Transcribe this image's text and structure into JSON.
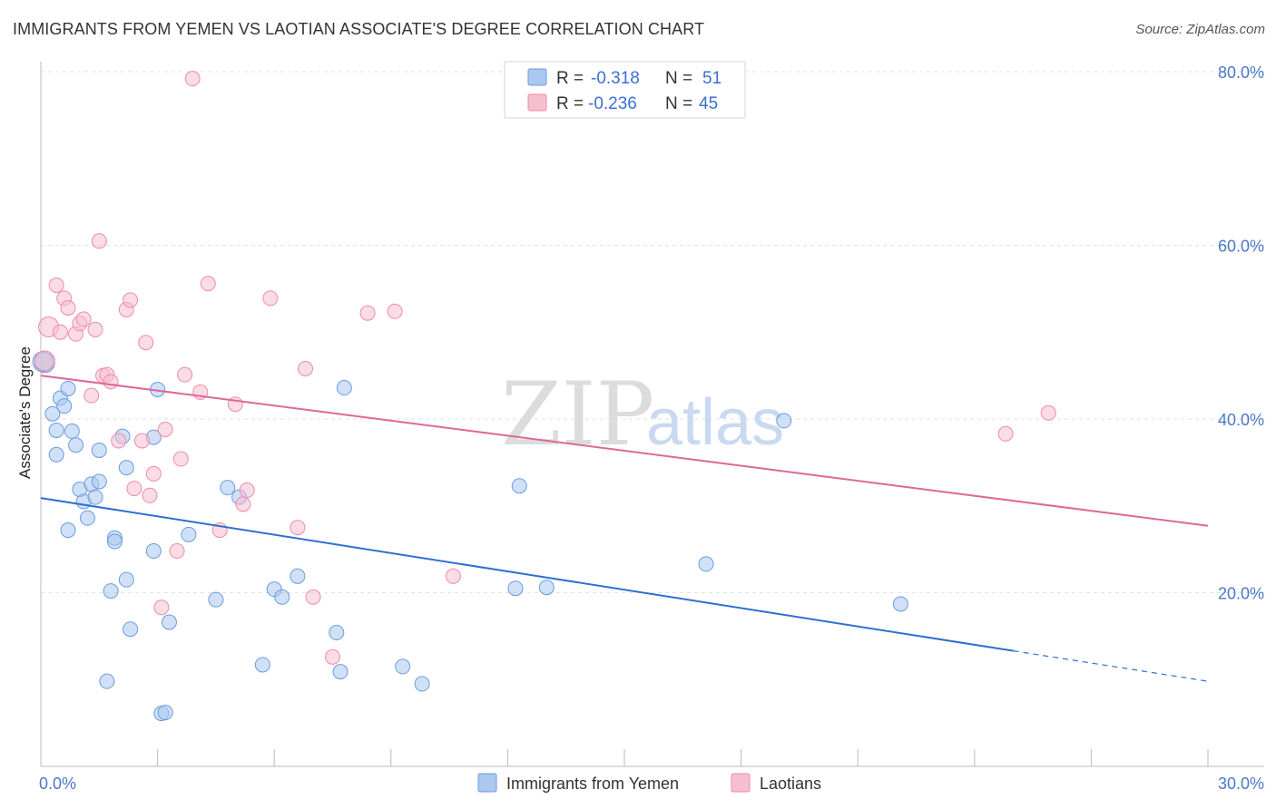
{
  "header": {
    "title": "IMMIGRANTS FROM YEMEN VS LAOTIAN ASSOCIATE'S DEGREE CORRELATION CHART",
    "source": "Source: ZipAtlas.com"
  },
  "watermark": {
    "zip": "ZIP",
    "atlas": "atlas"
  },
  "legend": {
    "rows": [
      {
        "r_label": "R =",
        "r_value": "-0.318",
        "n_label": "N =",
        "n_value": "51",
        "color": "#aac8f0"
      },
      {
        "r_label": "R =",
        "r_value": "-0.236",
        "n_label": "N =",
        "n_value": "45",
        "color": "#f6bfd0"
      }
    ]
  },
  "bottom_legend": {
    "items": [
      {
        "label": "Immigrants from Yemen",
        "color": "#aac8f0"
      },
      {
        "label": "Laotians",
        "color": "#f6bfd0"
      }
    ]
  },
  "chart_data": {
    "type": "scatter",
    "title": "IMMIGRANTS FROM YEMEN VS LAOTIAN ASSOCIATE'S DEGREE CORRELATION CHART",
    "xlabel": "",
    "ylabel": "Associate's Degree",
    "xlim": [
      0,
      30
    ],
    "ylim": [
      0,
      80
    ],
    "x_tick_labels": [
      "0.0%",
      "30.0%"
    ],
    "y_tick_labels": [
      "20.0%",
      "40.0%",
      "60.0%",
      "80.0%"
    ],
    "y_ticks": [
      20,
      40,
      60,
      80
    ],
    "grid": true,
    "legend_position": "top-center",
    "series": [
      {
        "name": "Immigrants from Yemen",
        "color": "#6b9be0",
        "fill": "#aac8f0",
        "trend": {
          "x": [
            0,
            25
          ],
          "y": [
            30.9,
            13.3
          ],
          "dashed_to": [
            30,
            9.8
          ]
        },
        "points": [
          [
            0.1,
            46.5
          ],
          [
            0.3,
            40.6
          ],
          [
            0.4,
            38.7
          ],
          [
            0.4,
            35.9
          ],
          [
            0.5,
            42.4
          ],
          [
            0.6,
            41.5
          ],
          [
            0.7,
            43.5
          ],
          [
            0.7,
            27.2
          ],
          [
            0.8,
            38.6
          ],
          [
            0.9,
            37.0
          ],
          [
            1.0,
            31.9
          ],
          [
            1.1,
            30.5
          ],
          [
            1.2,
            28.6
          ],
          [
            1.3,
            32.5
          ],
          [
            1.4,
            31.0
          ],
          [
            1.5,
            32.8
          ],
          [
            1.5,
            36.4
          ],
          [
            1.7,
            9.8
          ],
          [
            1.8,
            20.2
          ],
          [
            1.9,
            26.3
          ],
          [
            1.9,
            25.9
          ],
          [
            2.1,
            38.0
          ],
          [
            2.2,
            21.5
          ],
          [
            2.2,
            34.4
          ],
          [
            2.3,
            15.8
          ],
          [
            2.9,
            37.9
          ],
          [
            2.9,
            24.8
          ],
          [
            3.0,
            43.4
          ],
          [
            3.1,
            6.1
          ],
          [
            3.2,
            6.2
          ],
          [
            3.3,
            16.6
          ],
          [
            3.8,
            26.7
          ],
          [
            4.5,
            19.2
          ],
          [
            4.8,
            32.1
          ],
          [
            5.1,
            31.0
          ],
          [
            5.7,
            11.7
          ],
          [
            6.0,
            20.4
          ],
          [
            6.2,
            19.5
          ],
          [
            6.6,
            21.9
          ],
          [
            7.6,
            15.4
          ],
          [
            7.7,
            10.9
          ],
          [
            7.8,
            43.6
          ],
          [
            9.3,
            11.5
          ],
          [
            9.8,
            9.5
          ],
          [
            12.2,
            20.5
          ],
          [
            12.3,
            32.3
          ],
          [
            13.0,
            20.6
          ],
          [
            17.1,
            23.3
          ],
          [
            19.1,
            39.8
          ],
          [
            22.1,
            18.7
          ],
          [
            0.05,
            46.6
          ]
        ]
      },
      {
        "name": "Laotians",
        "color": "#f08aaa",
        "fill": "#f6bfd0",
        "trend": {
          "x": [
            0,
            30
          ],
          "y": [
            45.0,
            27.7
          ]
        },
        "points": [
          [
            0.1,
            46.7
          ],
          [
            0.2,
            50.6
          ],
          [
            0.4,
            55.4
          ],
          [
            0.5,
            50.0
          ],
          [
            0.6,
            53.9
          ],
          [
            0.7,
            52.8
          ],
          [
            0.9,
            49.8
          ],
          [
            1.0,
            51.0
          ],
          [
            1.1,
            51.5
          ],
          [
            1.3,
            42.7
          ],
          [
            1.4,
            50.3
          ],
          [
            1.5,
            60.5
          ],
          [
            1.6,
            45.0
          ],
          [
            1.7,
            45.1
          ],
          [
            1.8,
            44.3
          ],
          [
            2.0,
            37.5
          ],
          [
            2.2,
            52.6
          ],
          [
            2.3,
            53.7
          ],
          [
            2.4,
            32.0
          ],
          [
            2.6,
            37.5
          ],
          [
            2.7,
            48.8
          ],
          [
            2.8,
            31.2
          ],
          [
            2.9,
            33.7
          ],
          [
            3.1,
            18.3
          ],
          [
            3.2,
            38.8
          ],
          [
            3.5,
            24.8
          ],
          [
            3.6,
            35.4
          ],
          [
            3.7,
            45.1
          ],
          [
            3.9,
            79.2
          ],
          [
            4.1,
            43.1
          ],
          [
            4.3,
            55.6
          ],
          [
            4.6,
            27.2
          ],
          [
            5.0,
            41.7
          ],
          [
            5.2,
            30.2
          ],
          [
            5.3,
            31.8
          ],
          [
            5.9,
            53.9
          ],
          [
            6.6,
            27.5
          ],
          [
            6.8,
            45.8
          ],
          [
            7.0,
            19.5
          ],
          [
            7.5,
            12.6
          ],
          [
            8.4,
            52.2
          ],
          [
            9.1,
            52.4
          ],
          [
            10.6,
            21.9
          ],
          [
            24.8,
            38.3
          ],
          [
            25.9,
            40.7
          ]
        ]
      }
    ]
  }
}
